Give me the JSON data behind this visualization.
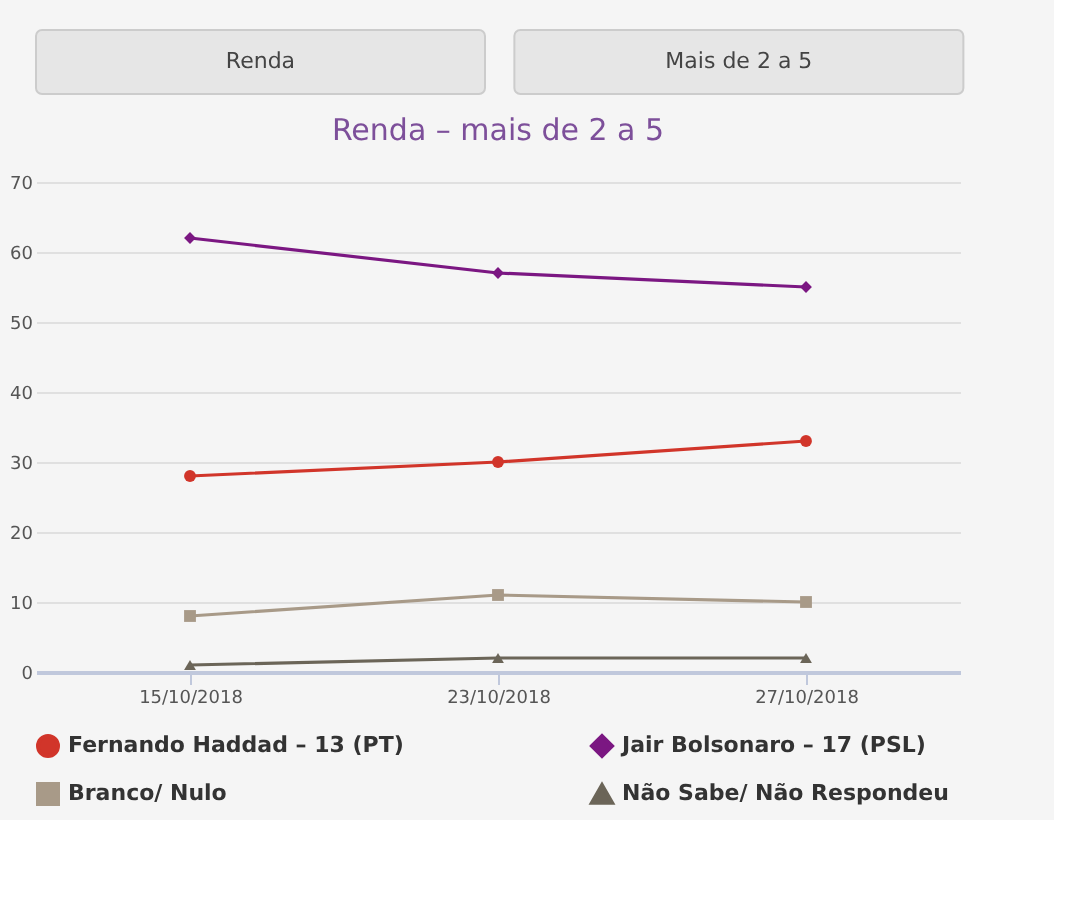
{
  "chart_data": {
    "type": "line",
    "title": "Renda – mais de 2 a 5",
    "annotations": [
      "Renda",
      "Mais de 2 a 5"
    ],
    "categories": [
      "15/10/2018",
      "23/10/2018",
      "27/10/2018"
    ],
    "series": [
      {
        "name": "Fernando Haddad – 13 (PT)",
        "color": "#d1352a",
        "marker": "circle",
        "values": [
          28,
          30,
          33
        ]
      },
      {
        "name": "Jair Bolsonaro – 17 (PSL)",
        "color": "#7b1782",
        "marker": "diamond",
        "values": [
          62,
          57,
          55
        ]
      },
      {
        "name": "Branco/ Nulo",
        "color": "#a89a88",
        "marker": "square",
        "values": [
          8,
          11,
          10
        ]
      },
      {
        "name": "Não Sabe/ Não Respondeu",
        "color": "#6b6558",
        "marker": "triangle",
        "values": [
          1,
          2,
          2
        ]
      }
    ],
    "ylim": [
      0,
      70
    ],
    "yticks": [
      0,
      10,
      20,
      30,
      40,
      50,
      60,
      70
    ],
    "grid": "y",
    "legend": "bottom",
    "line_style": "solid"
  }
}
